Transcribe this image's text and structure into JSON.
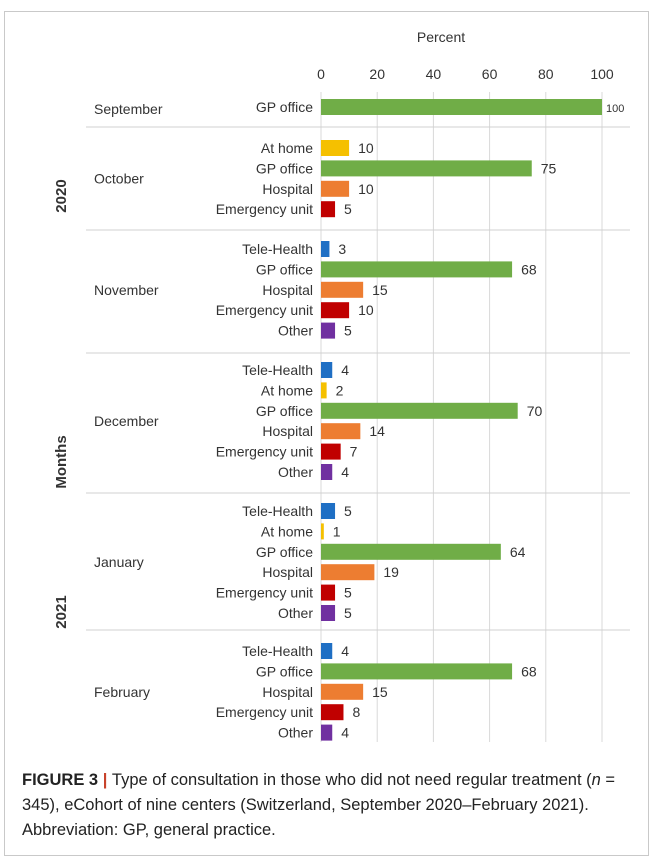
{
  "chart_data": {
    "type": "bar",
    "orientation": "horizontal",
    "xlabel": "Percent",
    "ylabel": "Months",
    "xlim": [
      0,
      100
    ],
    "xticks": [
      0,
      20,
      40,
      60,
      80,
      100
    ],
    "grid": true,
    "legend": "none",
    "colors": {
      "Tele-Health": "#1f6fc4",
      "At home": "#f5c000",
      "GP office": "#70ad47",
      "Hospital": "#ed7d31",
      "Emergency unit": "#c00000",
      "Other": "#7030a0"
    },
    "years": [
      {
        "label": "2020",
        "months": [
          "September",
          "October",
          "November",
          "December"
        ]
      },
      {
        "label": "2021",
        "months": [
          "January",
          "February"
        ]
      }
    ],
    "groups": [
      {
        "month": "September",
        "bars": [
          {
            "category": "GP office",
            "value": 100
          }
        ]
      },
      {
        "month": "October",
        "bars": [
          {
            "category": "At home",
            "value": 10
          },
          {
            "category": "GP office",
            "value": 75
          },
          {
            "category": "Hospital",
            "value": 10
          },
          {
            "category": "Emergency unit",
            "value": 5
          }
        ]
      },
      {
        "month": "November",
        "bars": [
          {
            "category": "Tele-Health",
            "value": 3
          },
          {
            "category": "GP office",
            "value": 68
          },
          {
            "category": "Hospital",
            "value": 15
          },
          {
            "category": "Emergency unit",
            "value": 10
          },
          {
            "category": "Other",
            "value": 5
          }
        ]
      },
      {
        "month": "December",
        "bars": [
          {
            "category": "Tele-Health",
            "value": 4
          },
          {
            "category": "At home",
            "value": 2
          },
          {
            "category": "GP office",
            "value": 70
          },
          {
            "category": "Hospital",
            "value": 14
          },
          {
            "category": "Emergency unit",
            "value": 7
          },
          {
            "category": "Other",
            "value": 4
          }
        ]
      },
      {
        "month": "January",
        "bars": [
          {
            "category": "Tele-Health",
            "value": 5
          },
          {
            "category": "At home",
            "value": 1
          },
          {
            "category": "GP office",
            "value": 64
          },
          {
            "category": "Hospital",
            "value": 19
          },
          {
            "category": "Emergency unit",
            "value": 5
          },
          {
            "category": "Other",
            "value": 5
          }
        ]
      },
      {
        "month": "February",
        "bars": [
          {
            "category": "Tele-Health",
            "value": 4
          },
          {
            "category": "GP office",
            "value": 68
          },
          {
            "category": "Hospital",
            "value": 15
          },
          {
            "category": "Emergency unit",
            "value": 8
          },
          {
            "category": "Other",
            "value": 4
          }
        ]
      }
    ]
  },
  "caption": {
    "figure_label": "FIGURE 3",
    "separator": " | ",
    "text_a": "Type of consultation in those who did not need regular treatment (",
    "n_symbol": "n",
    "text_b": " = 345), eCohort of nine centers (Switzerland, September 2020–February 2021). Abbreviation: GP, general practice."
  }
}
